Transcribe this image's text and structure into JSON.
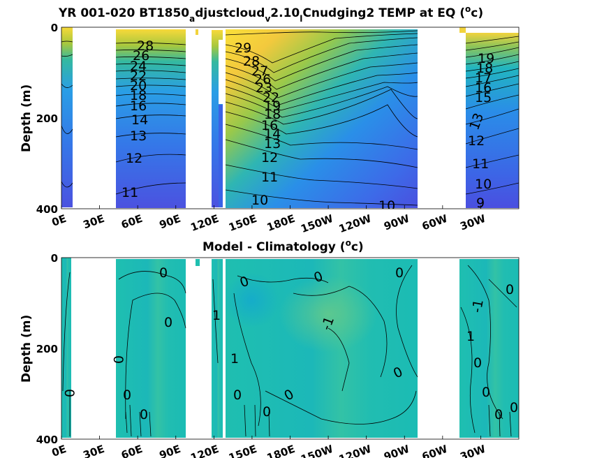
{
  "chart_data": [
    {
      "type": "heatmap",
      "title_main": "YR 001-020 BT1850",
      "title_sub1": "a",
      "title_mid": "djustcloud",
      "title_sub2": "v",
      "title_mid2": "2.10",
      "title_sub3": "l",
      "title_tail": "Cnudging2 TEMP at EQ (",
      "title_sup": "o",
      "title_end": "c)",
      "ylabel": "Depth (m)",
      "y_ticks": [
        "0",
        "200",
        "400"
      ],
      "x_ticks": [
        "0E",
        "30E",
        "60E",
        "90E",
        "120E",
        "150E",
        "180E",
        "150W",
        "120W",
        "90W",
        "60W",
        "30W"
      ],
      "ylim": [
        400,
        0
      ],
      "contour_labels": [
        "29",
        "28",
        "27",
        "26",
        "25",
        "24",
        "23",
        "22",
        "21",
        "20",
        "19",
        "18",
        "17",
        "16",
        "15",
        "14",
        "13",
        "12",
        "11",
        "10",
        "9"
      ],
      "upper_left_labels": [
        "28",
        "26",
        "24",
        "22",
        "20",
        "18",
        "16",
        "14",
        "13",
        "12",
        "11"
      ],
      "pacific_labels": [
        "29",
        "28",
        "27",
        "26",
        "23",
        "22",
        "19",
        "18",
        "16",
        "14",
        "13",
        "12",
        "11",
        "10",
        "10"
      ],
      "atlantic_labels": [
        "13",
        "12",
        "11",
        "10",
        "9"
      ]
    },
    {
      "type": "heatmap",
      "title_main": "Model - Climatology (",
      "title_sup": "o",
      "title_end": "c)",
      "ylabel": "Depth (m)",
      "y_ticks": [
        "0",
        "200",
        "400"
      ],
      "x_ticks": [
        "0E",
        "30E",
        "60E",
        "90E",
        "120E",
        "150E",
        "180E",
        "150W",
        "120W",
        "90W",
        "60W",
        "30W"
      ],
      "ylim": [
        400,
        0
      ],
      "contour_labels": [
        "0",
        "0",
        "0",
        "0",
        "0",
        "0",
        "0",
        "0",
        "0",
        "0",
        "0",
        "0",
        "0",
        "-1",
        "-1",
        "1",
        "1",
        "1"
      ]
    }
  ]
}
